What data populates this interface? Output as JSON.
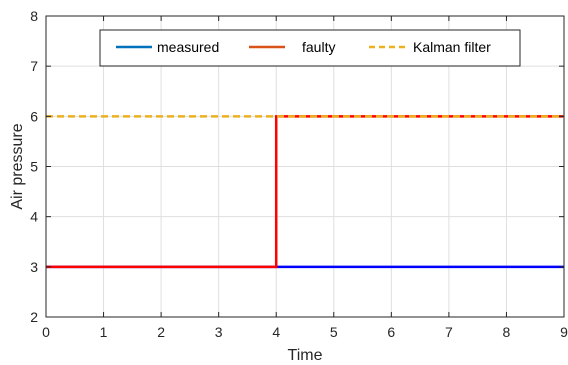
{
  "chart_data": {
    "type": "line",
    "title": "",
    "xlabel": "Time",
    "ylabel": "Air pressure",
    "xlim": [
      0,
      9
    ],
    "ylim": [
      2,
      8
    ],
    "xticks": [
      "0",
      "1",
      "2",
      "3",
      "4",
      "5",
      "6",
      "7",
      "8",
      "9"
    ],
    "yticks": [
      "2",
      "3",
      "4",
      "5",
      "6",
      "7",
      "8"
    ],
    "grid": true,
    "legend": "top",
    "series": [
      {
        "name": "measured",
        "color": "#0000ff",
        "legend_color": "#0072bd",
        "style": "solid",
        "x": [
          0,
          4,
          4,
          9
        ],
        "y": [
          3,
          3,
          3,
          3
        ]
      },
      {
        "name": "faulty",
        "color": "#ff0000",
        "legend_color": "#d95319",
        "style": "solid",
        "x": [
          0,
          4,
          4,
          9
        ],
        "y": [
          3,
          3,
          6,
          6
        ]
      },
      {
        "name": "Kalman filter",
        "color": "#edb120",
        "legend_color": "#edb120",
        "style": "dashed",
        "x": [
          0,
          9
        ],
        "y": [
          6,
          6
        ]
      }
    ]
  }
}
